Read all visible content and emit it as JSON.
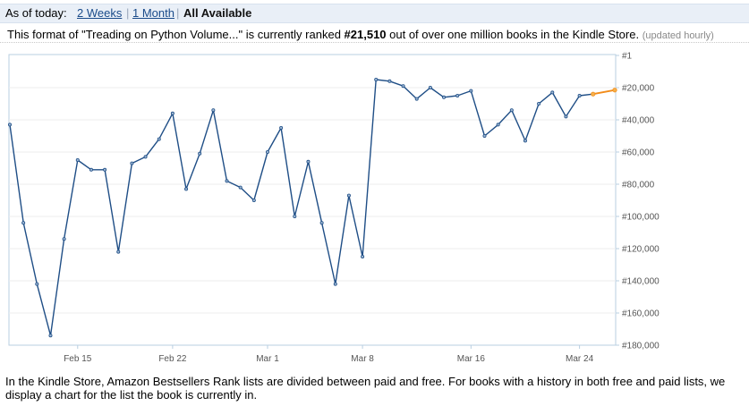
{
  "tabs": {
    "prefix": "As of today:",
    "two_weeks": "2 Weeks",
    "one_month": "1 Month",
    "all_available": "All Available"
  },
  "rank": {
    "text_before": "This format of \"Treading on Python Volume...\" is currently ranked ",
    "rank": "#21,510",
    "text_after": " out of over one million books in the Kindle Store.",
    "updated": "(updated hourly)"
  },
  "footer": {
    "text": "In the Kindle Store, Amazon Bestsellers Rank lists are divided between paid and free. For books with a history in both free and paid lists, we display a chart for the list the book is currently in."
  },
  "chart_data": {
    "type": "line",
    "title": "",
    "xlabel": "",
    "ylabel": "",
    "y_inverted": true,
    "ylim": [
      1,
      180000
    ],
    "y_ticks": [
      {
        "value": 1,
        "label": "#1"
      },
      {
        "value": 20000,
        "label": "#20,000"
      },
      {
        "value": 40000,
        "label": "#40,000"
      },
      {
        "value": 60000,
        "label": "#60,000"
      },
      {
        "value": 80000,
        "label": "#80,000"
      },
      {
        "value": 100000,
        "label": "#100,000"
      },
      {
        "value": 120000,
        "label": "#120,000"
      },
      {
        "value": 140000,
        "label": "#140,000"
      },
      {
        "value": 160000,
        "label": "#160,000"
      },
      {
        "value": 180000,
        "label": "#180,000"
      }
    ],
    "x_ticks": [
      {
        "day": 5,
        "label": "Feb 15"
      },
      {
        "day": 12,
        "label": "Feb 22"
      },
      {
        "day": 19,
        "label": "Mar 1"
      },
      {
        "day": 26,
        "label": "Mar 8"
      },
      {
        "day": 34,
        "label": "Mar 16"
      },
      {
        "day": 42,
        "label": "Mar 24"
      }
    ],
    "x_range": [
      0,
      44.6
    ],
    "series": [
      {
        "color": "#1f4e86",
        "points": [
          {
            "day": 0,
            "rank": 43000
          },
          {
            "day": 1,
            "rank": 104000
          },
          {
            "day": 2,
            "rank": 142000
          },
          {
            "day": 3,
            "rank": 174000
          },
          {
            "day": 4,
            "rank": 114000
          },
          {
            "day": 5,
            "rank": 65000
          },
          {
            "day": 6,
            "rank": 71000
          },
          {
            "day": 7,
            "rank": 71000
          },
          {
            "day": 8,
            "rank": 122000
          },
          {
            "day": 9,
            "rank": 67000
          },
          {
            "day": 10,
            "rank": 63000
          },
          {
            "day": 11,
            "rank": 52000
          },
          {
            "day": 12,
            "rank": 36000
          },
          {
            "day": 13,
            "rank": 83000
          },
          {
            "day": 14,
            "rank": 61000
          },
          {
            "day": 15,
            "rank": 34000
          },
          {
            "day": 16,
            "rank": 78000
          },
          {
            "day": 17,
            "rank": 82000
          },
          {
            "day": 18,
            "rank": 90000
          },
          {
            "day": 19,
            "rank": 60000
          },
          {
            "day": 20,
            "rank": 45000
          },
          {
            "day": 21,
            "rank": 100000
          },
          {
            "day": 22,
            "rank": 66000
          },
          {
            "day": 23,
            "rank": 104000
          },
          {
            "day": 24,
            "rank": 142000
          },
          {
            "day": 25,
            "rank": 87000
          },
          {
            "day": 26,
            "rank": 125000
          },
          {
            "day": 27,
            "rank": 15000
          },
          {
            "day": 28,
            "rank": 16000
          },
          {
            "day": 29,
            "rank": 19000
          },
          {
            "day": 30,
            "rank": 27000
          },
          {
            "day": 31,
            "rank": 20000
          },
          {
            "day": 32,
            "rank": 26000
          },
          {
            "day": 33,
            "rank": 25000
          },
          {
            "day": 34,
            "rank": 22000
          },
          {
            "day": 35,
            "rank": 50000
          },
          {
            "day": 36,
            "rank": 43000
          },
          {
            "day": 37,
            "rank": 34000
          },
          {
            "day": 38,
            "rank": 53000
          },
          {
            "day": 39,
            "rank": 30000
          },
          {
            "day": 40,
            "rank": 23000
          },
          {
            "day": 41,
            "rank": 38000
          },
          {
            "day": 42,
            "rank": 25000
          },
          {
            "day": 43,
            "rank": 24000
          }
        ]
      },
      {
        "color": "#f28c1a",
        "points": [
          {
            "day": 43,
            "rank": 24000
          },
          {
            "day": 44.6,
            "rank": 21510
          }
        ]
      }
    ]
  }
}
